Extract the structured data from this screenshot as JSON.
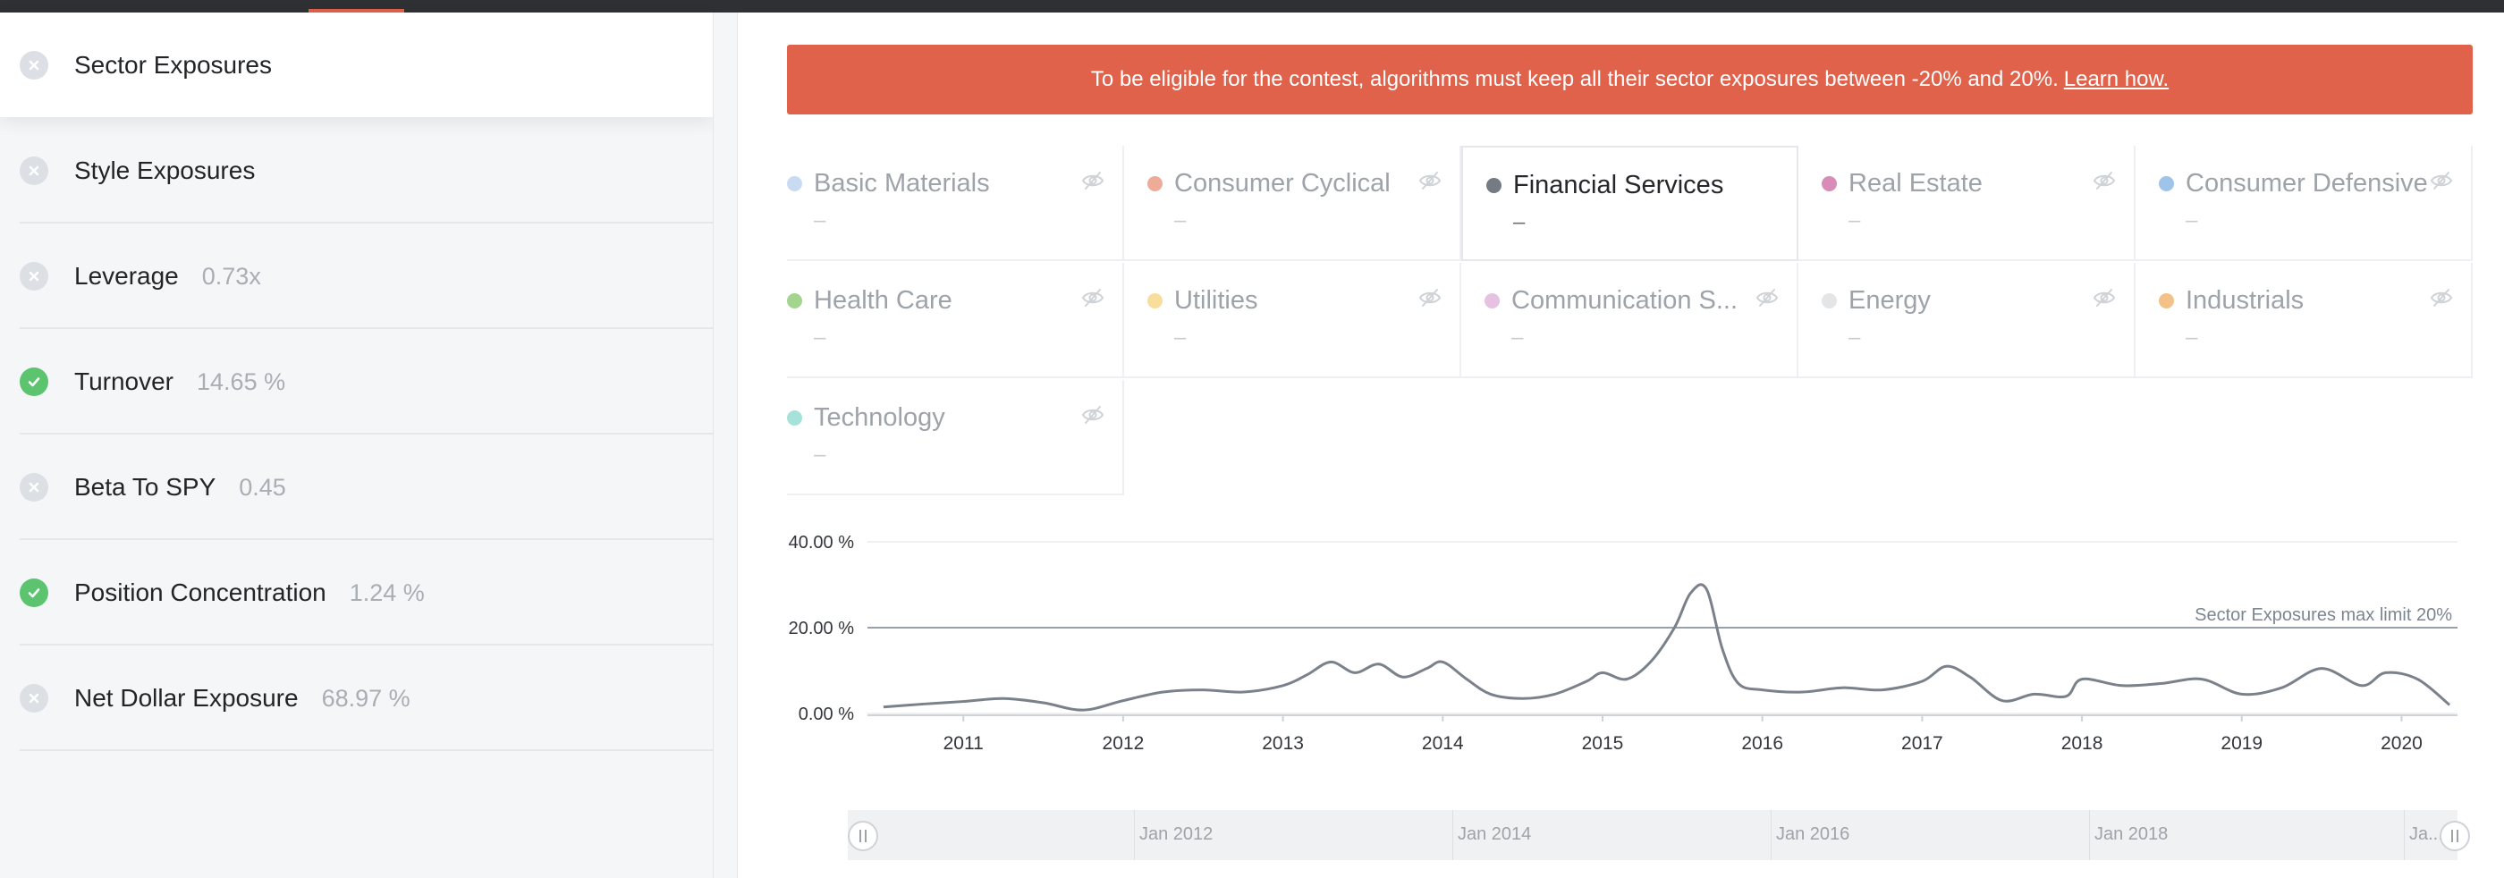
{
  "sidebar": {
    "items": [
      {
        "label": "Sector Exposures",
        "value": "",
        "status": "fail",
        "active": true
      },
      {
        "label": "Style Exposures",
        "value": "",
        "status": "fail",
        "active": false
      },
      {
        "label": "Leverage",
        "value": "0.73x",
        "status": "fail",
        "active": false
      },
      {
        "label": "Turnover",
        "value": "14.65 %",
        "status": "pass",
        "active": false
      },
      {
        "label": "Beta To SPY",
        "value": "0.45",
        "status": "fail",
        "active": false
      },
      {
        "label": "Position Concentration",
        "value": "1.24 %",
        "status": "pass",
        "active": false
      },
      {
        "label": "Net Dollar Exposure",
        "value": "68.97 %",
        "status": "fail",
        "active": false
      }
    ]
  },
  "banner": {
    "text": "To be eligible for the contest, algorithms must keep all their sector exposures between -20% and 20%.",
    "link": "Learn how."
  },
  "sectors": [
    {
      "name": "Basic Materials",
      "value": "–",
      "color": "#c9dbf3",
      "selected": false
    },
    {
      "name": "Consumer Cyclical",
      "value": "–",
      "color": "#eeac98",
      "selected": false
    },
    {
      "name": "Financial Services",
      "value": "–",
      "color": "#747b85",
      "selected": true
    },
    {
      "name": "Real Estate",
      "value": "–",
      "color": "#d98db6",
      "selected": false
    },
    {
      "name": "Consumer Defensive",
      "value": "–",
      "color": "#9fc4ea",
      "selected": false
    },
    {
      "name": "Health Care",
      "value": "–",
      "color": "#a3d58e",
      "selected": false
    },
    {
      "name": "Utilities",
      "value": "–",
      "color": "#f9dd9c",
      "selected": false
    },
    {
      "name": "Communication S...",
      "value": "–",
      "color": "#e6c1e2",
      "selected": false
    },
    {
      "name": "Energy",
      "value": "–",
      "color": "#e4e5e7",
      "selected": false
    },
    {
      "name": "Industrials",
      "value": "–",
      "color": "#f4c189",
      "selected": false
    },
    {
      "name": "Technology",
      "value": "–",
      "color": "#a6e2d9",
      "selected": false
    }
  ],
  "chart_data": {
    "type": "line",
    "series": [
      {
        "name": "Financial Services",
        "x": [
          2010.5,
          2010.75,
          2011.0,
          2011.25,
          2011.5,
          2011.75,
          2012.0,
          2012.25,
          2012.5,
          2012.75,
          2013.0,
          2013.15,
          2013.3,
          2013.45,
          2013.6,
          2013.75,
          2013.9,
          2014.0,
          2014.15,
          2014.3,
          2014.5,
          2014.7,
          2014.9,
          2015.0,
          2015.15,
          2015.3,
          2015.45,
          2015.55,
          2015.65,
          2015.75,
          2015.85,
          2016.0,
          2016.25,
          2016.5,
          2016.75,
          2017.0,
          2017.15,
          2017.3,
          2017.5,
          2017.7,
          2017.9,
          2018.0,
          2018.25,
          2018.5,
          2018.75,
          2019.0,
          2019.25,
          2019.5,
          2019.75,
          2019.9,
          2020.1,
          2020.3
        ],
        "values": [
          1.5,
          2.2,
          2.8,
          3.5,
          2.5,
          0.8,
          3.0,
          5.0,
          5.5,
          5.0,
          6.5,
          9.0,
          12.0,
          9.5,
          11.5,
          8.5,
          10.5,
          12.0,
          8.0,
          4.5,
          3.5,
          4.5,
          7.5,
          9.5,
          8.0,
          12.0,
          20.0,
          28.0,
          29.0,
          15.0,
          7.0,
          5.5,
          5.0,
          6.0,
          5.5,
          7.5,
          11.0,
          8.5,
          3.0,
          4.5,
          4.0,
          8.0,
          6.5,
          7.0,
          8.0,
          4.5,
          6.0,
          10.5,
          6.5,
          9.5,
          8.0,
          2.0
        ]
      }
    ],
    "y_ticks": [
      "0.00 %",
      "20.00 %",
      "40.00 %"
    ],
    "ylim": [
      0,
      40
    ],
    "xlim": [
      2010.4,
      2020.35
    ],
    "x_ticks": [
      "2011",
      "2012",
      "2013",
      "2014",
      "2015",
      "2016",
      "2017",
      "2018",
      "2019",
      "2020"
    ],
    "limit_line": {
      "value": 20,
      "label": "Sector Exposures max limit 20%"
    },
    "colors": {
      "line": "#7a818b",
      "limit": "#7d8591",
      "grid": "#eef0f2"
    }
  },
  "scrubber": {
    "labels": [
      "Jan 2012",
      "Jan 2014",
      "Jan 2016",
      "Jan 2018",
      "Ja..."
    ]
  }
}
